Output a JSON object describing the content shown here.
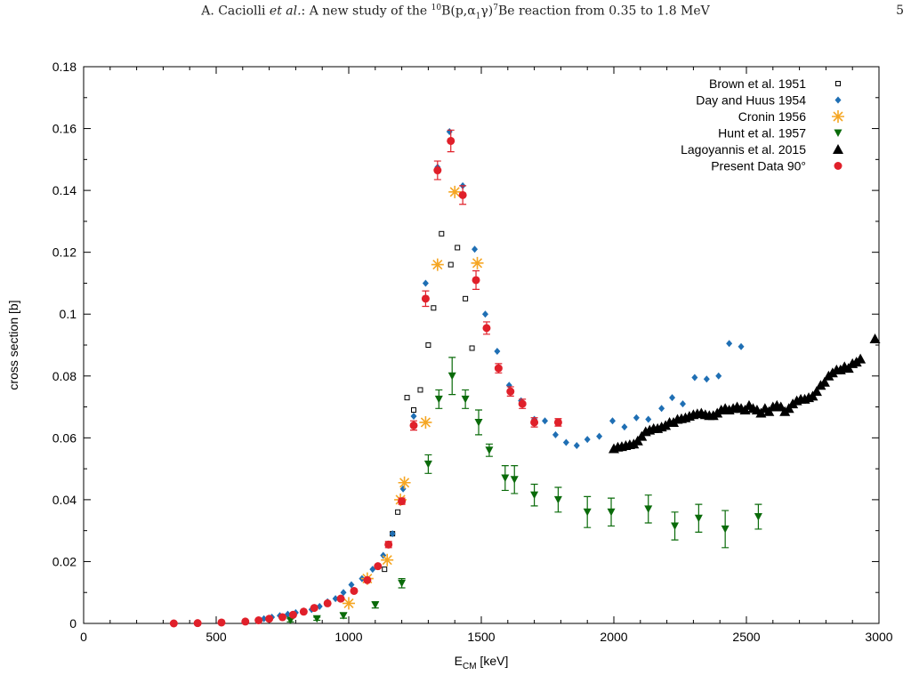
{
  "header": {
    "author": "A. Caciolli",
    "etal": "et al.",
    "title_prefix": ": A new study of the",
    "mass_number": "10",
    "reaction_body": "B(p,α",
    "subscript": "1",
    "reaction_end": "γ)",
    "product_mass": "7",
    "title_suffix": "Be reaction from 0.35 to 1.8 MeV",
    "page_number": "5"
  },
  "chart_data": {
    "type": "scatter",
    "title": "",
    "xlabel_main": "E",
    "xlabel_sub": "CM",
    "xlabel_unit": " [keV]",
    "ylabel": "cross section [b]",
    "xlim": [
      0,
      3000
    ],
    "ylim": [
      0,
      0.18
    ],
    "xticks": [
      "0",
      "500",
      "1000",
      "1500",
      "2000",
      "2500",
      "3000"
    ],
    "yticks": [
      "0",
      "0.02",
      "0.04",
      "0.06",
      "0.08",
      "0.1",
      "0.12",
      "0.14",
      "0.16",
      "0.18"
    ],
    "grid": false,
    "legend_position": "top-right",
    "series": [
      {
        "name": "Brown et al. 1951",
        "marker": "open-square",
        "color": "#000000",
        "points": [
          [
            1135,
            0.0175
          ],
          [
            1165,
            0.029
          ],
          [
            1185,
            0.036
          ],
          [
            1220,
            0.073
          ],
          [
            1245,
            0.069
          ],
          [
            1270,
            0.0755
          ],
          [
            1300,
            0.09
          ],
          [
            1320,
            0.102
          ],
          [
            1350,
            0.126
          ],
          [
            1385,
            0.116
          ],
          [
            1410,
            0.1215
          ],
          [
            1440,
            0.105
          ],
          [
            1465,
            0.089
          ]
        ]
      },
      {
        "name": "Day and Huus 1954",
        "marker": "diamond",
        "color": "#1f6fb4",
        "points": [
          [
            680,
            0.0015
          ],
          [
            710,
            0.002
          ],
          [
            740,
            0.0025
          ],
          [
            770,
            0.003
          ],
          [
            800,
            0.0035
          ],
          [
            830,
            0.004
          ],
          [
            860,
            0.0045
          ],
          [
            890,
            0.0055
          ],
          [
            920,
            0.007
          ],
          [
            950,
            0.008
          ],
          [
            980,
            0.01
          ],
          [
            1010,
            0.0125
          ],
          [
            1050,
            0.0145
          ],
          [
            1090,
            0.0175
          ],
          [
            1130,
            0.022
          ],
          [
            1165,
            0.029
          ],
          [
            1205,
            0.0435
          ],
          [
            1245,
            0.067
          ],
          [
            1290,
            0.11
          ],
          [
            1335,
            0.1475
          ],
          [
            1380,
            0.159
          ],
          [
            1430,
            0.1415
          ],
          [
            1475,
            0.121
          ],
          [
            1515,
            0.1
          ],
          [
            1560,
            0.088
          ],
          [
            1605,
            0.077
          ],
          [
            1650,
            0.072
          ],
          [
            1700,
            0.066
          ],
          [
            1740,
            0.0655
          ],
          [
            1780,
            0.061
          ],
          [
            1820,
            0.0585
          ],
          [
            1860,
            0.0575
          ],
          [
            1900,
            0.0595
          ],
          [
            1945,
            0.0605
          ],
          [
            1995,
            0.0655
          ],
          [
            2040,
            0.0635
          ],
          [
            2085,
            0.0665
          ],
          [
            2130,
            0.066
          ],
          [
            2180,
            0.0695
          ],
          [
            2220,
            0.073
          ],
          [
            2260,
            0.071
          ],
          [
            2305,
            0.0795
          ],
          [
            2350,
            0.079
          ],
          [
            2395,
            0.08
          ],
          [
            2435,
            0.0905
          ],
          [
            2480,
            0.0895
          ]
        ]
      },
      {
        "name": "Cronin 1956",
        "marker": "asterisk",
        "color": "#f5a623",
        "points": [
          [
            1000,
            0.0065
          ],
          [
            1070,
            0.0145
          ],
          [
            1145,
            0.0205
          ],
          [
            1195,
            0.04
          ],
          [
            1210,
            0.0455
          ],
          [
            1290,
            0.065
          ],
          [
            1335,
            0.116
          ],
          [
            1400,
            0.1395
          ],
          [
            1485,
            0.1165
          ]
        ]
      },
      {
        "name": "Hunt et al. 1957",
        "marker": "triangle-down",
        "color": "#0a6b0a",
        "points": [
          [
            780,
            0.001,
            0.0005
          ],
          [
            880,
            0.0015,
            0.0005
          ],
          [
            980,
            0.0025,
            0.0008
          ],
          [
            1100,
            0.006,
            0.001
          ],
          [
            1200,
            0.013,
            0.0015
          ],
          [
            1300,
            0.0515,
            0.003
          ],
          [
            1340,
            0.0725,
            0.003
          ],
          [
            1390,
            0.08,
            0.006
          ],
          [
            1440,
            0.0725,
            0.003
          ],
          [
            1490,
            0.065,
            0.004
          ],
          [
            1530,
            0.056,
            0.002
          ],
          [
            1590,
            0.047,
            0.004
          ],
          [
            1625,
            0.0465,
            0.0045
          ],
          [
            1700,
            0.0415,
            0.0035
          ],
          [
            1790,
            0.04,
            0.004
          ],
          [
            1900,
            0.036,
            0.005
          ],
          [
            1990,
            0.036,
            0.0045
          ],
          [
            2130,
            0.037,
            0.0045
          ],
          [
            2230,
            0.0315,
            0.0045
          ],
          [
            2320,
            0.034,
            0.0045
          ],
          [
            2420,
            0.0305,
            0.006
          ],
          [
            2545,
            0.0345,
            0.004
          ]
        ]
      },
      {
        "name": "Lagoyannis et al. 2015",
        "marker": "triangle-up",
        "color": "#000000",
        "points": [
          [
            2000,
            0.0565
          ],
          [
            2015,
            0.057
          ],
          [
            2030,
            0.0572
          ],
          [
            2045,
            0.0575
          ],
          [
            2060,
            0.0578
          ],
          [
            2075,
            0.058
          ],
          [
            2090,
            0.059
          ],
          [
            2105,
            0.0605
          ],
          [
            2120,
            0.062
          ],
          [
            2135,
            0.0625
          ],
          [
            2150,
            0.063
          ],
          [
            2165,
            0.063
          ],
          [
            2180,
            0.0635
          ],
          [
            2195,
            0.064
          ],
          [
            2210,
            0.065
          ],
          [
            2225,
            0.065
          ],
          [
            2240,
            0.066
          ],
          [
            2255,
            0.0662
          ],
          [
            2270,
            0.0665
          ],
          [
            2285,
            0.067
          ],
          [
            2300,
            0.0675
          ],
          [
            2315,
            0.0678
          ],
          [
            2330,
            0.068
          ],
          [
            2345,
            0.0675
          ],
          [
            2360,
            0.0672
          ],
          [
            2375,
            0.0672
          ],
          [
            2390,
            0.068
          ],
          [
            2405,
            0.069
          ],
          [
            2420,
            0.0695
          ],
          [
            2435,
            0.069
          ],
          [
            2450,
            0.0695
          ],
          [
            2465,
            0.07
          ],
          [
            2480,
            0.0695
          ],
          [
            2495,
            0.069
          ],
          [
            2510,
            0.0705
          ],
          [
            2525,
            0.0695
          ],
          [
            2540,
            0.069
          ],
          [
            2555,
            0.068
          ],
          [
            2570,
            0.0695
          ],
          [
            2585,
            0.0685
          ],
          [
            2600,
            0.07
          ],
          [
            2615,
            0.0705
          ],
          [
            2630,
            0.07
          ],
          [
            2645,
            0.0685
          ],
          [
            2660,
            0.0695
          ],
          [
            2675,
            0.071
          ],
          [
            2690,
            0.072
          ],
          [
            2705,
            0.0725
          ],
          [
            2720,
            0.0725
          ],
          [
            2735,
            0.073
          ],
          [
            2750,
            0.0735
          ],
          [
            2765,
            0.075
          ],
          [
            2780,
            0.077
          ],
          [
            2795,
            0.078
          ],
          [
            2810,
            0.08
          ],
          [
            2825,
            0.081
          ],
          [
            2840,
            0.082
          ],
          [
            2855,
            0.082
          ],
          [
            2870,
            0.083
          ],
          [
            2885,
            0.0825
          ],
          [
            2900,
            0.084
          ],
          [
            2915,
            0.0845
          ],
          [
            2930,
            0.0855
          ],
          [
            2985,
            0.092
          ]
        ]
      },
      {
        "name": "Present Data 90°",
        "marker": "circle",
        "color": "#e0202a",
        "points": [
          [
            340,
            0.0,
            0
          ],
          [
            430,
            0.0001,
            0
          ],
          [
            520,
            0.0003,
            0
          ],
          [
            610,
            0.0006,
            0
          ],
          [
            660,
            0.001,
            0
          ],
          [
            700,
            0.0015,
            0
          ],
          [
            750,
            0.002,
            0
          ],
          [
            790,
            0.0028,
            0
          ],
          [
            830,
            0.0038,
            0
          ],
          [
            870,
            0.005,
            0
          ],
          [
            920,
            0.0065,
            0
          ],
          [
            970,
            0.008,
            0
          ],
          [
            1020,
            0.0105,
            0
          ],
          [
            1070,
            0.014,
            0
          ],
          [
            1110,
            0.0185,
            0
          ],
          [
            1150,
            0.0255,
            0.001
          ],
          [
            1200,
            0.0395,
            0.001
          ],
          [
            1245,
            0.064,
            0.0015
          ],
          [
            1290,
            0.105,
            0.0025
          ],
          [
            1335,
            0.1465,
            0.003
          ],
          [
            1385,
            0.156,
            0.0035
          ],
          [
            1430,
            0.1385,
            0.003
          ],
          [
            1480,
            0.111,
            0.003
          ],
          [
            1520,
            0.0955,
            0.002
          ],
          [
            1565,
            0.0825,
            0.0015
          ],
          [
            1610,
            0.075,
            0.0015
          ],
          [
            1655,
            0.071,
            0.0015
          ],
          [
            1700,
            0.065,
            0.0015
          ],
          [
            1790,
            0.065,
            0.0012
          ]
        ]
      }
    ]
  }
}
